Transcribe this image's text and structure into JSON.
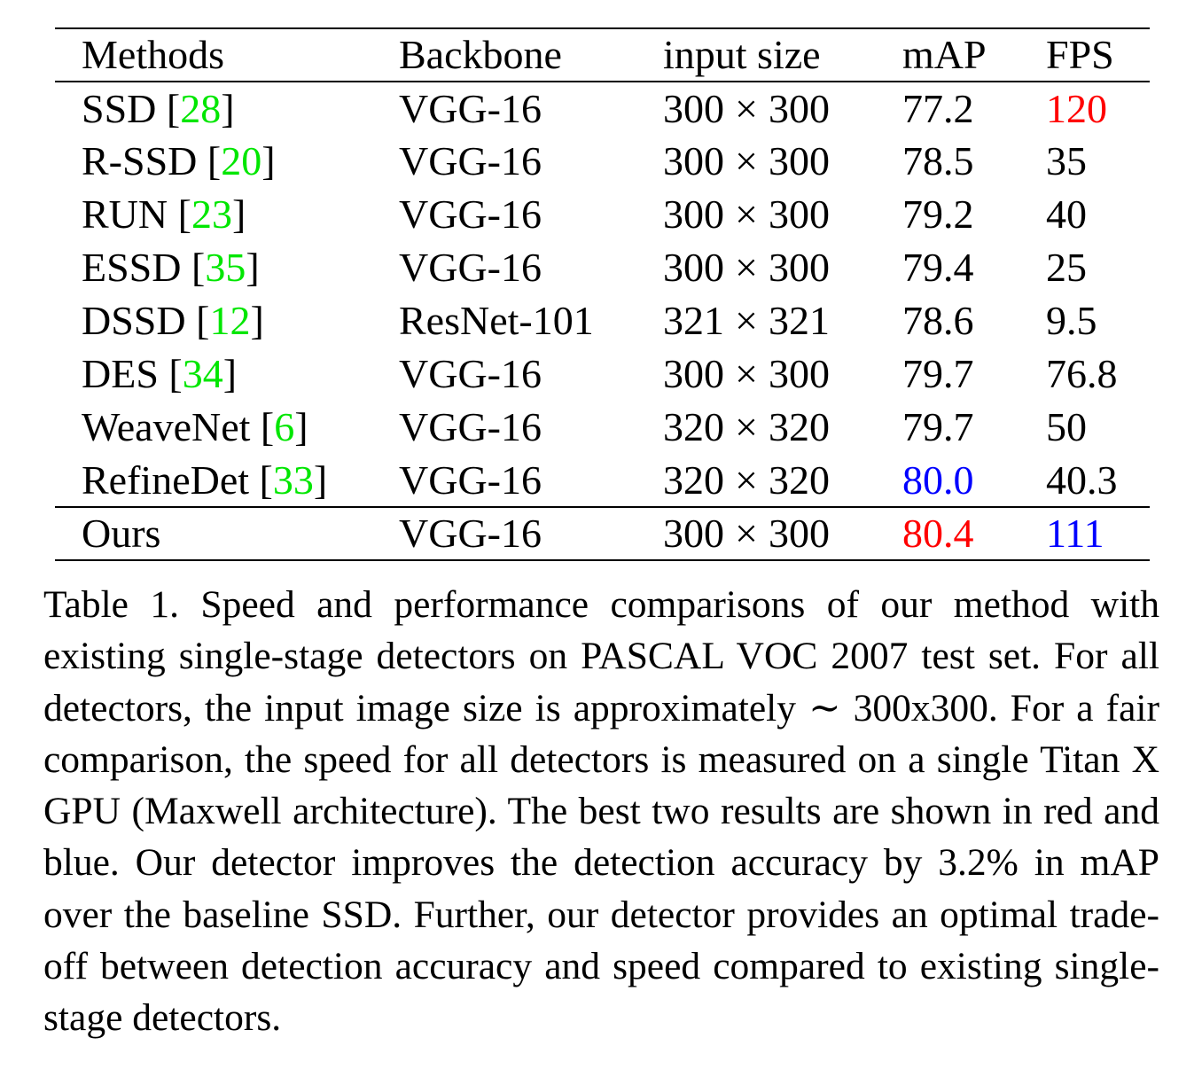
{
  "colors": {
    "ref": "#00e600",
    "best": "#ff0000",
    "second": "#0000ff"
  },
  "table": {
    "headers": {
      "method": "Methods",
      "backbone": "Backbone",
      "input_size": "input size",
      "map": "mAP",
      "fps": "FPS"
    },
    "rows": [
      {
        "name": "SSD",
        "ref": "28",
        "backbone": "VGG-16",
        "w": "300",
        "h": "300",
        "map": "77.2",
        "fps": "120",
        "map_color": "",
        "fps_color": "best"
      },
      {
        "name": "R-SSD",
        "ref": "20",
        "backbone": "VGG-16",
        "w": "300",
        "h": "300",
        "map": "78.5",
        "fps": "35",
        "map_color": "",
        "fps_color": ""
      },
      {
        "name": "RUN",
        "ref": "23",
        "backbone": "VGG-16",
        "w": "300",
        "h": "300",
        "map": "79.2",
        "fps": "40",
        "map_color": "",
        "fps_color": ""
      },
      {
        "name": "ESSD",
        "ref": "35",
        "backbone": "VGG-16",
        "w": "300",
        "h": "300",
        "map": "79.4",
        "fps": "25",
        "map_color": "",
        "fps_color": ""
      },
      {
        "name": "DSSD",
        "ref": "12",
        "backbone": "ResNet-101",
        "w": "321",
        "h": "321",
        "map": "78.6",
        "fps": "9.5",
        "map_color": "",
        "fps_color": ""
      },
      {
        "name": "DES",
        "ref": "34",
        "backbone": "VGG-16",
        "w": "300",
        "h": "300",
        "map": "79.7",
        "fps": "76.8",
        "map_color": "",
        "fps_color": ""
      },
      {
        "name": "WeaveNet",
        "ref": "6",
        "backbone": "VGG-16",
        "w": "320",
        "h": "320",
        "map": "79.7",
        "fps": "50",
        "map_color": "",
        "fps_color": ""
      },
      {
        "name": "RefineDet",
        "ref": "33",
        "backbone": "VGG-16",
        "w": "320",
        "h": "320",
        "map": "80.0",
        "fps": "40.3",
        "map_color": "second",
        "fps_color": ""
      }
    ],
    "ours": {
      "name": "Ours",
      "backbone": "VGG-16",
      "w": "300",
      "h": "300",
      "map": "80.4",
      "fps": "111",
      "map_color": "best",
      "fps_color": "second"
    }
  },
  "caption": "Table 1. Speed and performance comparisons of our method with existing single-stage detectors on PASCAL VOC 2007 test set. For all detectors, the input image size is approximately ∼ 300x300. For a fair comparison, the speed for all detectors is measured on a single Titan X GPU (Maxwell architecture). The best two results are shown in red and blue.  Our detector improves the detection accuracy by 3.2% in mAP over the baseline SSD. Further, our detector provides an optimal trade-off between detection accuracy and speed compared to existing single-stage detectors."
}
